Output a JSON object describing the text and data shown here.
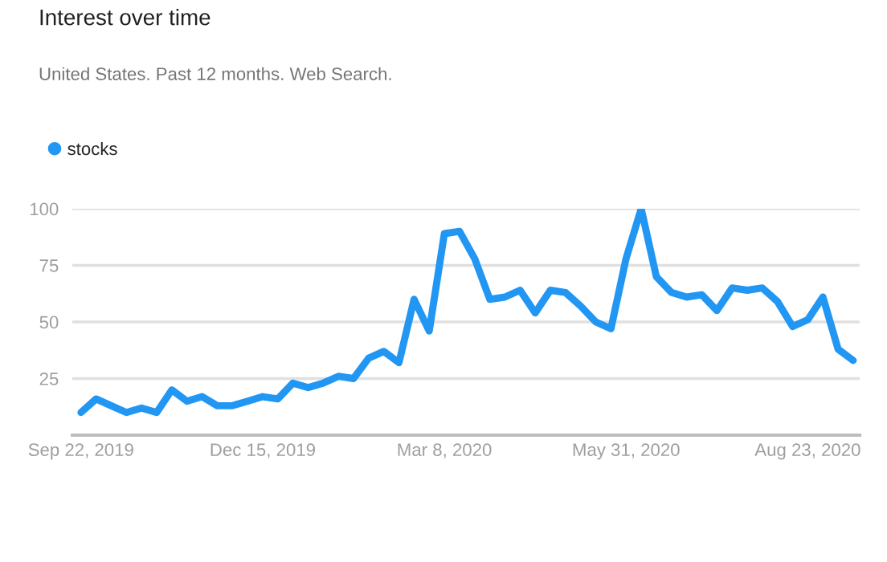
{
  "chart_data": {
    "type": "line",
    "title": "Interest over time",
    "subtitle": "United States. Past 12 months. Web Search.",
    "x": [
      "2019-09-22",
      "2019-09-29",
      "2019-10-06",
      "2019-10-13",
      "2019-10-20",
      "2019-10-27",
      "2019-11-03",
      "2019-11-10",
      "2019-11-17",
      "2019-11-24",
      "2019-12-01",
      "2019-12-08",
      "2019-12-15",
      "2019-12-22",
      "2019-12-29",
      "2020-01-05",
      "2020-01-12",
      "2020-01-19",
      "2020-01-26",
      "2020-02-02",
      "2020-02-09",
      "2020-02-16",
      "2020-02-23",
      "2020-03-01",
      "2020-03-08",
      "2020-03-15",
      "2020-03-22",
      "2020-03-29",
      "2020-04-05",
      "2020-04-12",
      "2020-04-19",
      "2020-04-26",
      "2020-05-03",
      "2020-05-10",
      "2020-05-17",
      "2020-05-24",
      "2020-05-31",
      "2020-06-07",
      "2020-06-14",
      "2020-06-21",
      "2020-06-28",
      "2020-07-05",
      "2020-07-12",
      "2020-07-19",
      "2020-07-26",
      "2020-08-02",
      "2020-08-09",
      "2020-08-16",
      "2020-08-23",
      "2020-08-30",
      "2020-09-06",
      "2020-09-13"
    ],
    "series": [
      {
        "name": "stocks",
        "color": "#2196f3",
        "values": [
          10,
          16,
          13,
          10,
          12,
          10,
          20,
          15,
          17,
          13,
          13,
          15,
          17,
          16,
          23,
          21,
          23,
          26,
          25,
          34,
          37,
          32,
          60,
          46,
          89,
          90,
          78,
          60,
          61,
          64,
          54,
          64,
          63,
          57,
          50,
          47,
          78,
          100,
          70,
          63,
          61,
          62,
          55,
          65,
          64,
          65,
          59,
          48,
          51,
          61,
          38,
          33
        ]
      }
    ],
    "xlim": [
      "2019-09-18",
      "2020-09-16"
    ],
    "xticks": [
      {
        "value": "2019-09-22",
        "label": "Sep 22, 2019"
      },
      {
        "value": "2019-12-15",
        "label": "Dec 15, 2019"
      },
      {
        "value": "2020-03-08",
        "label": "Mar 8, 2020"
      },
      {
        "value": "2020-05-31",
        "label": "May 31, 2020"
      },
      {
        "value": "2020-08-23",
        "label": "Aug 23, 2020"
      }
    ],
    "ylim": [
      0,
      100
    ],
    "yticks": [
      25,
      50,
      75,
      100
    ],
    "grid": "y",
    "legend": "top left",
    "marker": "none",
    "line_style": "solid"
  }
}
